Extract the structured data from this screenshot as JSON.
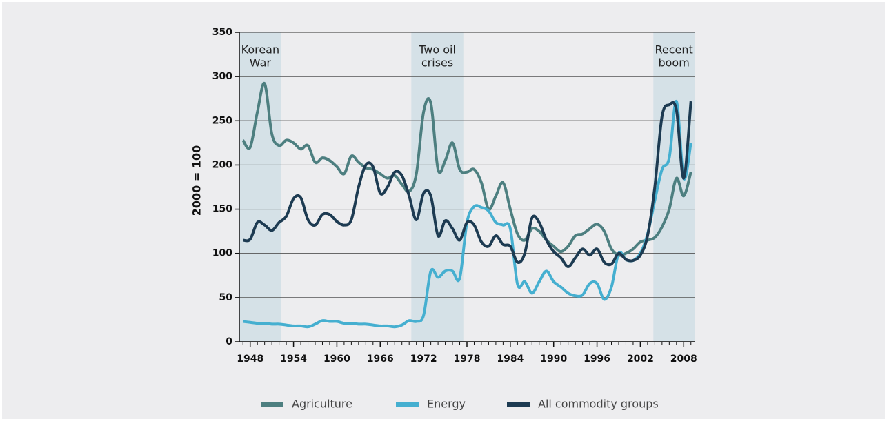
{
  "chart_data": {
    "type": "line",
    "y_label": "2000 = 100",
    "x": [
      1947,
      1948,
      1949,
      1950,
      1951,
      1952,
      1953,
      1954,
      1955,
      1956,
      1957,
      1958,
      1959,
      1960,
      1961,
      1962,
      1963,
      1964,
      1965,
      1966,
      1967,
      1968,
      1969,
      1970,
      1971,
      1972,
      1973,
      1974,
      1975,
      1976,
      1977,
      1978,
      1979,
      1980,
      1981,
      1982,
      1983,
      1984,
      1985,
      1986,
      1987,
      1988,
      1989,
      1990,
      1991,
      1992,
      1993,
      1994,
      1995,
      1996,
      1997,
      1998,
      1999,
      2000,
      2001,
      2002,
      2003,
      2004,
      2005,
      2006,
      2007,
      2008,
      2009
    ],
    "series": [
      {
        "name": "Agriculture",
        "color": "#4d7f80",
        "values": [
          228,
          220,
          260,
          292,
          235,
          222,
          228,
          225,
          218,
          222,
          203,
          208,
          205,
          198,
          190,
          210,
          203,
          197,
          195,
          190,
          185,
          188,
          178,
          170,
          190,
          260,
          270,
          195,
          205,
          225,
          195,
          192,
          195,
          180,
          150,
          165,
          180,
          150,
          122,
          115,
          128,
          125,
          115,
          108,
          102,
          108,
          120,
          122,
          128,
          133,
          125,
          105,
          98,
          100,
          105,
          113,
          115,
          118,
          130,
          150,
          185,
          165,
          192
        ]
      },
      {
        "name": "Energy",
        "color": "#45afd0",
        "values": [
          23,
          22,
          21,
          21,
          20,
          20,
          19,
          18,
          18,
          17,
          20,
          24,
          23,
          23,
          21,
          21,
          20,
          20,
          19,
          18,
          18,
          17,
          19,
          24,
          23,
          30,
          80,
          73,
          80,
          80,
          72,
          135,
          153,
          152,
          148,
          135,
          132,
          128,
          65,
          68,
          55,
          68,
          80,
          68,
          62,
          55,
          52,
          53,
          66,
          66,
          48,
          62,
          100,
          93,
          92,
          100,
          122,
          160,
          195,
          208,
          272,
          185,
          225
        ]
      },
      {
        "name": "All commodity groups",
        "color": "#1d3b52",
        "values": [
          115,
          116,
          135,
          132,
          126,
          135,
          142,
          162,
          163,
          138,
          132,
          144,
          144,
          136,
          132,
          138,
          175,
          200,
          198,
          168,
          175,
          192,
          188,
          165,
          138,
          168,
          165,
          120,
          137,
          128,
          115,
          135,
          132,
          113,
          108,
          120,
          110,
          108,
          90,
          100,
          140,
          135,
          115,
          102,
          95,
          85,
          95,
          105,
          98,
          105,
          90,
          88,
          100,
          93,
          92,
          98,
          120,
          175,
          255,
          268,
          262,
          185,
          272
        ]
      }
    ],
    "spans": [
      {
        "label": [
          "Korean",
          "War"
        ],
        "start": 1946.5,
        "end": 1952.3
      },
      {
        "label": [
          "Two oil",
          "crises"
        ],
        "start": 1970.3,
        "end": 1977.5
      },
      {
        "label": [
          "Recent",
          "boom"
        ],
        "start": 2003.8,
        "end": 2009.5
      }
    ],
    "span_color": "#d5e1e7",
    "xlim": [
      1946.5,
      2009.5
    ],
    "xticks": [
      1948,
      1954,
      1960,
      1966,
      1972,
      1978,
      1984,
      1990,
      1996,
      2002,
      2008
    ],
    "ylim": [
      0,
      350
    ],
    "yticks": [
      0,
      50,
      100,
      150,
      200,
      250,
      300,
      350
    ],
    "grid": true,
    "legend": "bottom"
  }
}
